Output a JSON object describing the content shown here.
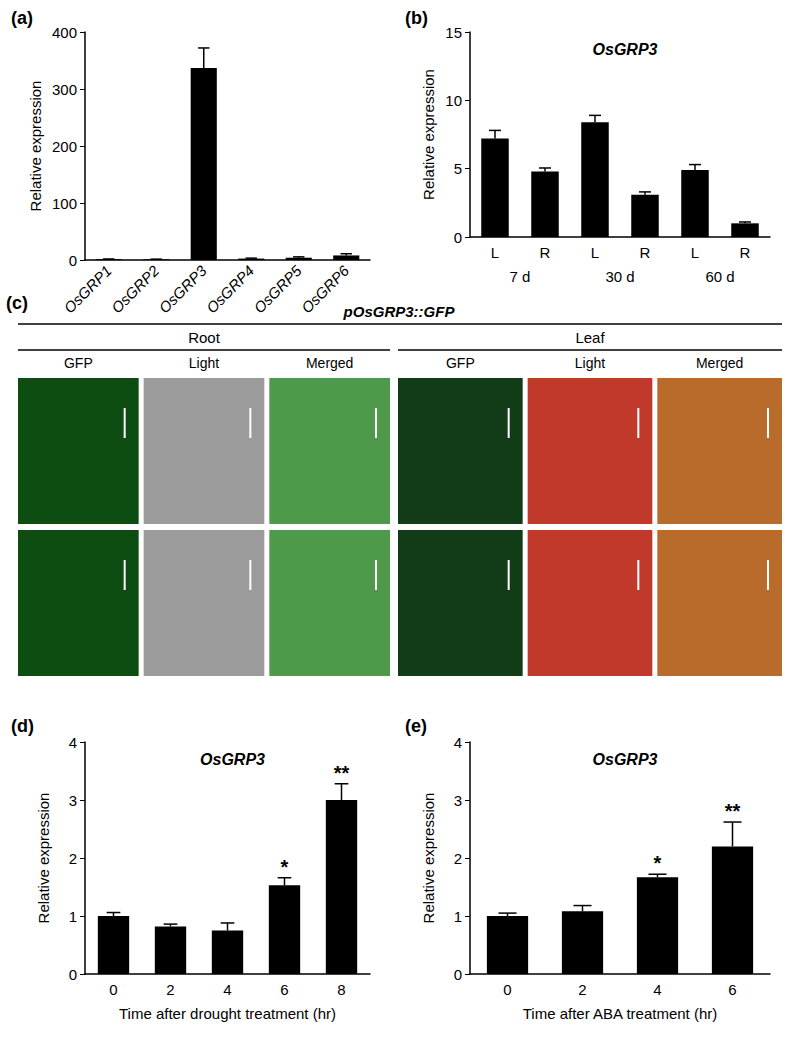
{
  "chart_data": [
    {
      "type": "bar",
      "panel": "(a)",
      "y_label": "Relative expression",
      "categories": [
        "OsGRP1",
        "OsGRP2",
        "OsGRP3",
        "OsGRP4",
        "OsGRP5",
        "OsGRP6"
      ],
      "values": [
        1.5,
        1.2,
        337,
        2.5,
        4,
        8
      ],
      "errors": [
        0.3,
        0.3,
        35,
        0.8,
        1.5,
        3
      ],
      "color": "#000000",
      "ylim": [
        0,
        400
      ],
      "yticks": [
        0,
        100,
        200,
        300,
        400
      ],
      "grid": false
    },
    {
      "type": "bar",
      "panel": "(b)",
      "title": "OsGRP3",
      "y_label": "Relative expression",
      "categories": [
        "L",
        "R",
        "L",
        "R",
        "L",
        "R"
      ],
      "groups": [
        "7 d",
        "30 d",
        "60 d"
      ],
      "values": [
        7.2,
        4.8,
        8.4,
        3.1,
        4.9,
        1.0
      ],
      "errors": [
        0.6,
        0.25,
        0.5,
        0.2,
        0.4,
        0.1
      ],
      "color": "#000000",
      "ylim": [
        0,
        15
      ],
      "yticks": [
        0,
        5,
        10,
        15
      ],
      "grid": false
    },
    {
      "type": "bar",
      "panel": "(d)",
      "title": "OsGRP3",
      "y_label": "Relative expression",
      "x_label": "Time after drought treatment (hr)",
      "categories": [
        "0",
        "2",
        "4",
        "6",
        "8"
      ],
      "values": [
        1.0,
        0.82,
        0.75,
        1.53,
        3.0
      ],
      "errors": [
        0.06,
        0.04,
        0.13,
        0.13,
        0.28
      ],
      "significance": [
        null,
        null,
        null,
        "*",
        "**"
      ],
      "color": "#000000",
      "ylim": [
        0,
        4
      ],
      "yticks": [
        0,
        1,
        2,
        3,
        4
      ],
      "grid": false
    },
    {
      "type": "bar",
      "panel": "(e)",
      "title": "OsGRP3",
      "y_label": "Relative expression",
      "x_label": "Time after ABA treatment (hr)",
      "categories": [
        "0",
        "2",
        "4",
        "6"
      ],
      "values": [
        1.0,
        1.08,
        1.67,
        2.2
      ],
      "errors": [
        0.05,
        0.1,
        0.05,
        0.42
      ],
      "significance": [
        null,
        null,
        "*",
        "**"
      ],
      "color": "#000000",
      "ylim": [
        0,
        4
      ],
      "yticks": [
        0,
        1,
        2,
        3,
        4
      ],
      "grid": false
    }
  ],
  "image_panel": {
    "panel": "(c)",
    "title": "pOsGRP3::GFP",
    "groups": [
      {
        "label": "Root",
        "columns": [
          "GFP",
          "Light",
          "Merged"
        ]
      },
      {
        "label": "Leaf",
        "columns": [
          "GFP",
          "Light",
          "Merged"
        ]
      }
    ]
  }
}
